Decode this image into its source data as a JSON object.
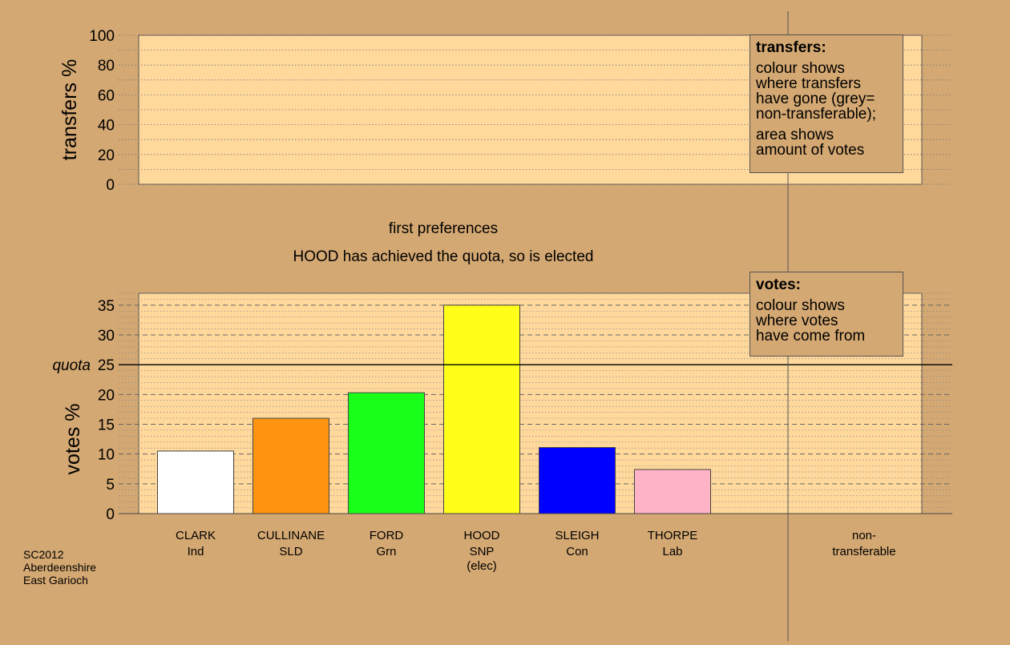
{
  "chart_data": [
    {
      "type": "area",
      "title": "",
      "ylabel": "transfers %",
      "ylim": [
        0,
        100
      ],
      "yticks": [
        0,
        20,
        40,
        60,
        80,
        100
      ],
      "grid": true,
      "legend": {
        "placement": "top-right",
        "title": "transfers:",
        "lines": [
          "colour shows",
          "where transfers",
          "have gone (grey=",
          "non-transferable);",
          "",
          "area shows",
          "amount of votes"
        ]
      },
      "series": []
    },
    {
      "type": "bar",
      "title": "first preferences",
      "subtitle": "HOOD has achieved the quota, so is elected",
      "ylabel": "votes %",
      "ylim": [
        0,
        37
      ],
      "yticks": [
        0,
        5,
        10,
        15,
        20,
        25,
        30,
        35
      ],
      "quota": {
        "label": "quota",
        "value": 25
      },
      "grid": true,
      "legend": {
        "placement": "top-right",
        "title": "votes:",
        "lines": [
          "colour shows",
          "where votes",
          "have come from"
        ]
      },
      "categories": [
        {
          "name": "CLARK",
          "party": "Ind",
          "note": "",
          "value": 10.5,
          "color": "#ffffff"
        },
        {
          "name": "CULLINANE",
          "party": "SLD",
          "note": "",
          "value": 16.0,
          "color": "#ff9410"
        },
        {
          "name": "FORD",
          "party": "Grn",
          "note": "",
          "value": 20.3,
          "color": "#1aff1a"
        },
        {
          "name": "HOOD",
          "party": "SNP",
          "note": "(elec)",
          "value": 35.0,
          "color": "#ffff1a"
        },
        {
          "name": "SLEIGH",
          "party": "Con",
          "note": "",
          "value": 11.1,
          "color": "#0000ff"
        },
        {
          "name": "THORPE",
          "party": "Lab",
          "note": "",
          "value": 7.4,
          "color": "#ffb3c6"
        }
      ],
      "nontransferable_label": [
        "non-",
        "transferable"
      ]
    }
  ],
  "footer": [
    "SC2012",
    "Aberdeenshire",
    "East Garioch"
  ],
  "colors": {
    "background": "#d4a872",
    "plot_background": "#ffd89c",
    "frame": "#555555",
    "quota_line": "#000000"
  }
}
